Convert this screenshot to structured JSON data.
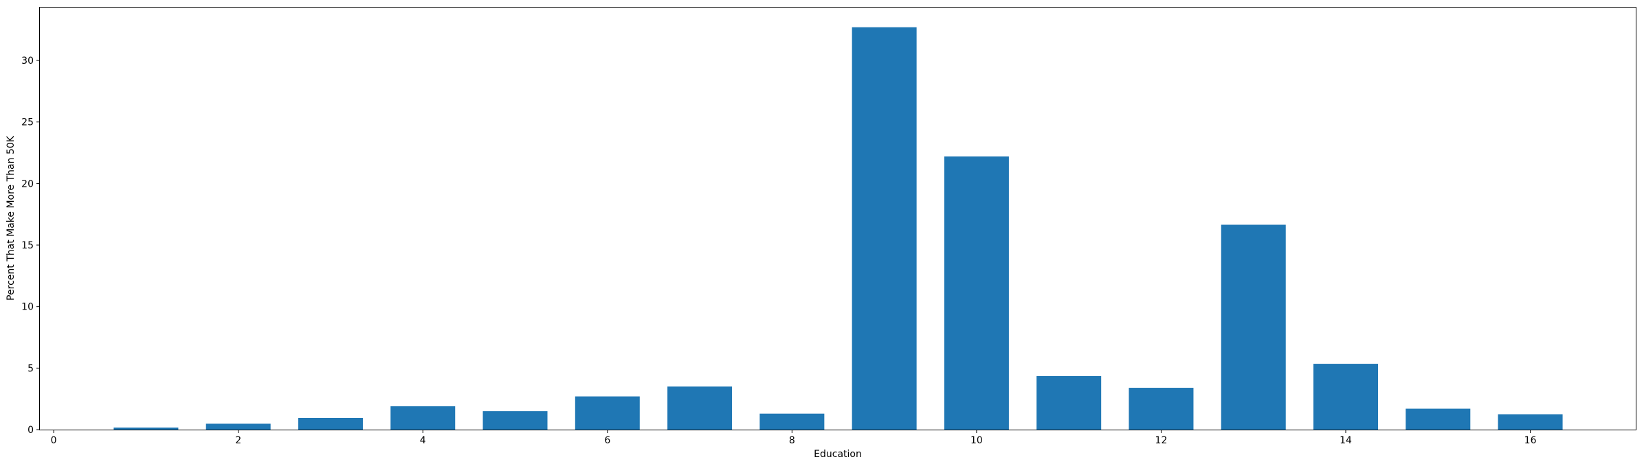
{
  "chart_data": {
    "type": "bar",
    "xlabel": "Education",
    "ylabel": "Percent That Make More Than 50K",
    "x": [
      1,
      2,
      3,
      4,
      5,
      6,
      7,
      8,
      9,
      10,
      11,
      12,
      13,
      14,
      15,
      16
    ],
    "values": [
      0.17,
      0.48,
      0.95,
      1.9,
      1.5,
      2.7,
      3.5,
      1.3,
      32.7,
      22.2,
      4.35,
      3.4,
      16.65,
      5.35,
      1.7,
      1.25
    ],
    "bar_width": 0.7,
    "xlim": [
      -0.15,
      17.15
    ],
    "ylim": [
      0,
      34.3
    ],
    "xticks": [
      0,
      2,
      4,
      6,
      8,
      10,
      12,
      14,
      16
    ],
    "yticks": [
      0,
      5,
      10,
      15,
      20,
      25,
      30
    ],
    "bar_color": "#1f77b4",
    "grid": false,
    "legend": "none"
  }
}
